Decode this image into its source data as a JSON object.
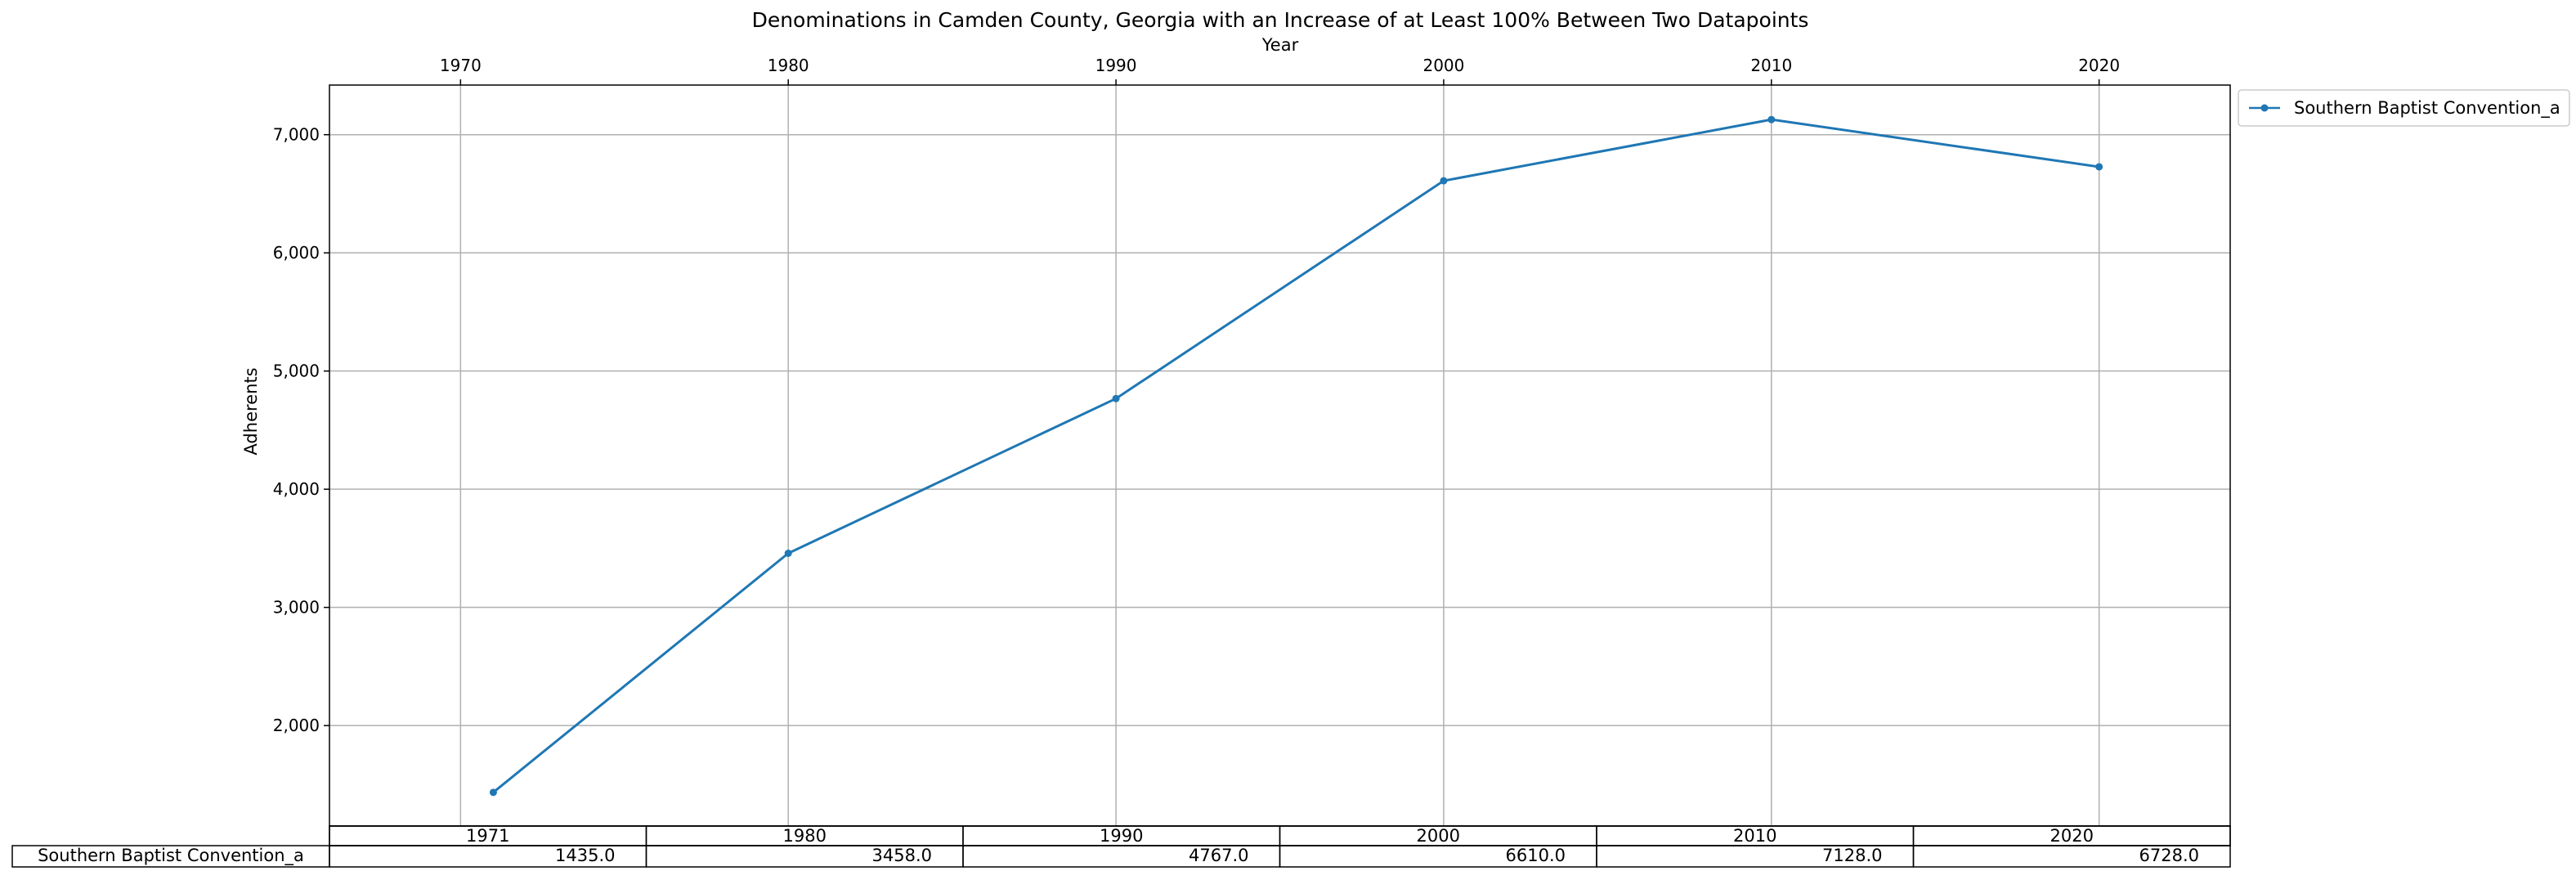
{
  "chart_data": {
    "type": "line",
    "title": "Denominations in Camden County, Georgia with an Increase of at Least 100% Between Two Datapoints",
    "xlabel": "Year",
    "ylabel": "Adherents",
    "x": [
      1971,
      1980,
      1990,
      2000,
      2010,
      2020
    ],
    "x_ticks": [
      1970,
      1980,
      1990,
      2000,
      2010,
      2020
    ],
    "x_tick_labels": [
      "1970",
      "1980",
      "1990",
      "2000",
      "2010",
      "2020"
    ],
    "xlim": [
      1966,
      2024
    ],
    "y_ticks": [
      2000,
      3000,
      4000,
      5000,
      6000,
      7000
    ],
    "y_tick_labels": [
      "2,000",
      "3,000",
      "4,000",
      "5,000",
      "6,000",
      "7,000"
    ],
    "ylim": [
      1150,
      7420
    ],
    "grid": true,
    "x_axis_position": "top",
    "legend_position": "outside-top-right",
    "series": [
      {
        "name": "Southern Baptist Convention_a",
        "color": "#1f77b4",
        "marker": "dot",
        "values": [
          1435,
          3458,
          4767,
          6610,
          7128,
          6728
        ]
      }
    ],
    "table": {
      "columns": [
        "1971",
        "1980",
        "1990",
        "2000",
        "2010",
        "2020"
      ],
      "rows": [
        {
          "label": "Southern Baptist Convention_a",
          "cells": [
            "1435.0",
            "3458.0",
            "4767.0",
            "6610.0",
            "7128.0",
            "6728.0"
          ]
        }
      ]
    }
  }
}
